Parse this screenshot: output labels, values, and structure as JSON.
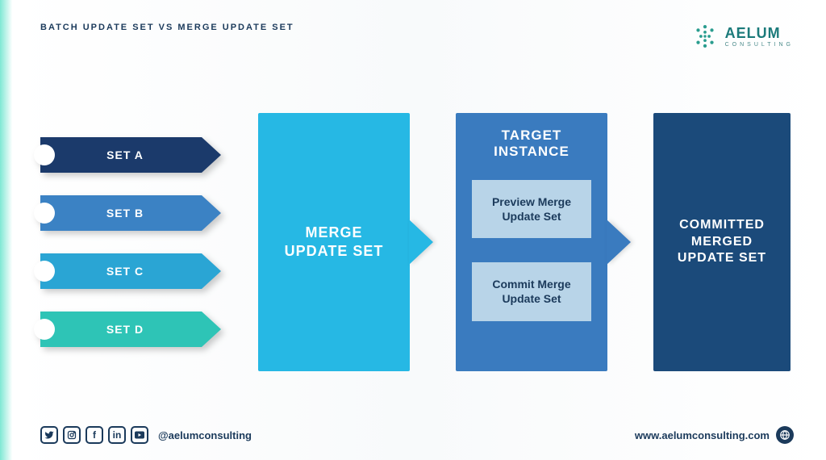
{
  "colors": {
    "text_dark": "#1b3a5b",
    "set_a": "#1b3a6b",
    "set_b": "#3b82c4",
    "set_c": "#2aa5d4",
    "set_d": "#2ec4b6",
    "merge_box": "#26b8e4",
    "target_box": "#3a7bbf",
    "target_sub_bg": "#b8d4e8",
    "target_sub_text": "#1b3a5b",
    "committed_box": "#1b4a7a",
    "logo_accent": "#2a9d8f"
  },
  "header": {
    "title": "BATCH UPDATE SET VS MERGE UPDATE SET",
    "brand_name": "AELUM",
    "brand_sub": "CONSULTING"
  },
  "flowchart": {
    "type": "flowchart",
    "sets": [
      {
        "label": "SET A",
        "color": "#1b3a6b"
      },
      {
        "label": "SET B",
        "color": "#3b82c4"
      },
      {
        "label": "SET C",
        "color": "#2aa5d4"
      },
      {
        "label": "SET D",
        "color": "#2ec4b6"
      }
    ],
    "merge": {
      "label": "MERGE\nUPDATE SET",
      "bg": "#26b8e4"
    },
    "target": {
      "title": "TARGET\nINSTANCE",
      "bg": "#3a7bbf",
      "sub_bg": "#b8d4e8",
      "sub_text": "#1b3a5b",
      "steps": [
        "Preview Merge Update Set",
        "Commit Merge Update Set"
      ]
    },
    "committed": {
      "label": "COMMITTED\nMERGED\nUPDATE SET",
      "bg": "#1b4a7a"
    }
  },
  "footer": {
    "handle": "@aelumconsulting",
    "website": "www.aelumconsulting.com",
    "social_icons": [
      "twitter",
      "instagram",
      "facebook",
      "linkedin",
      "youtube"
    ]
  }
}
